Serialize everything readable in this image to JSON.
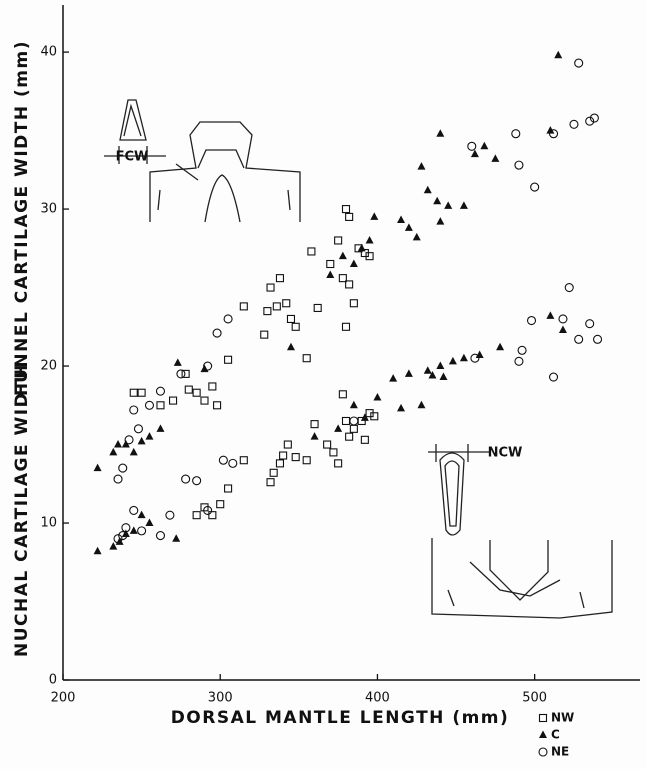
{
  "chart_data": {
    "type": "scatter",
    "xlabel": "DORSAL MANTLE LENGTH (mm)",
    "ylabels": [
      "FUNNEL CARTILAGE WIDTH (mm)",
      "NUCHAL CARTILAGE WIDTH"
    ],
    "annotations": [
      "FCW",
      "NCW"
    ],
    "xlim": [
      200,
      567
    ],
    "ylim": [
      0,
      43
    ],
    "xticks": [
      200,
      300,
      400,
      500
    ],
    "yticks": [
      0,
      10,
      20,
      30,
      40
    ],
    "legend": "bottom-right",
    "series": [
      {
        "name": "NW",
        "marker": "square",
        "color": "#111111",
        "x": [
          245,
          250,
          262,
          270,
          278,
          280,
          285,
          290,
          295,
          298,
          305,
          315,
          328,
          330,
          332,
          336,
          338,
          342,
          345,
          348,
          355,
          358,
          362,
          370,
          375,
          378,
          380,
          382,
          385,
          388,
          392,
          395,
          380,
          382,
          285,
          290,
          295,
          300,
          305,
          315,
          332,
          334,
          338,
          340,
          343,
          348,
          355,
          360,
          368,
          372,
          375,
          378,
          380,
          382,
          385,
          390,
          395,
          398,
          392
        ],
        "values": [
          18.3,
          18.3,
          17.5,
          17.8,
          19.5,
          18.5,
          18.3,
          17.8,
          18.7,
          17.5,
          20.4,
          23.8,
          22,
          23.5,
          25,
          23.8,
          25.6,
          24,
          23,
          22.5,
          20.5,
          27.3,
          23.7,
          26.5,
          28,
          25.6,
          30,
          25.2,
          24,
          27.5,
          27.2,
          27,
          22.5,
          29.5,
          10.5,
          11,
          10.5,
          11.2,
          12.2,
          14,
          12.6,
          13.2,
          13.8,
          14.3,
          15,
          14.2,
          14,
          16.3,
          15,
          14.5,
          13.8,
          18.2,
          16.5,
          15.5,
          16,
          16.5,
          17,
          16.8,
          15.3
        ]
      },
      {
        "name": "C",
        "marker": "triangle",
        "color": "#111111",
        "x": [
          222,
          232,
          235,
          240,
          245,
          250,
          255,
          262,
          273,
          290,
          345,
          370,
          378,
          385,
          390,
          395,
          398,
          415,
          420,
          425,
          428,
          432,
          438,
          440,
          445,
          440,
          455,
          462,
          468,
          475,
          510,
          515,
          222,
          232,
          236,
          240,
          245,
          250,
          255,
          272,
          360,
          375,
          385,
          392,
          400,
          410,
          415,
          420,
          428,
          432,
          435,
          440,
          442,
          448,
          455,
          465,
          478,
          510,
          518
        ],
        "values": [
          13.5,
          14.5,
          15,
          15,
          14.5,
          15.2,
          15.5,
          16,
          20.2,
          19.8,
          21.2,
          25.8,
          27,
          26.5,
          27.5,
          28,
          29.5,
          29.3,
          28.8,
          28.2,
          32.7,
          31.2,
          30.5,
          34.8,
          30.2,
          29.2,
          30.2,
          33.5,
          34,
          33.2,
          35,
          39.8,
          8.2,
          8.5,
          8.8,
          9.3,
          9.5,
          10.5,
          10,
          9,
          15.5,
          16,
          17.5,
          16.7,
          18,
          19.2,
          17.3,
          19.5,
          17.5,
          19.7,
          19.4,
          20,
          19.3,
          20.3,
          20.5,
          20.7,
          21.2,
          23.2,
          22.3
        ]
      },
      {
        "name": "NE",
        "marker": "circle",
        "color": "#111111",
        "x": [
          235,
          238,
          242,
          245,
          248,
          255,
          262,
          275,
          292,
          298,
          305,
          460,
          488,
          490,
          500,
          512,
          525,
          528,
          535,
          538,
          235,
          238,
          240,
          245,
          250,
          262,
          268,
          278,
          285,
          292,
          302,
          308,
          385,
          462,
          490,
          492,
          498,
          512,
          518,
          522,
          528,
          535,
          540
        ],
        "values": [
          12.8,
          13.5,
          15.3,
          17.2,
          16,
          17.5,
          18.4,
          19.5,
          20,
          22.1,
          23,
          34,
          34.8,
          32.8,
          31.4,
          34.8,
          35.4,
          39.3,
          35.6,
          35.8,
          9,
          9.2,
          9.7,
          10.8,
          9.5,
          9.2,
          10.5,
          12.8,
          12.7,
          10.8,
          14,
          13.8,
          16.5,
          20.5,
          20.3,
          21,
          22.9,
          19.3,
          23,
          25,
          21.7,
          22.7,
          21.7
        ]
      }
    ]
  }
}
